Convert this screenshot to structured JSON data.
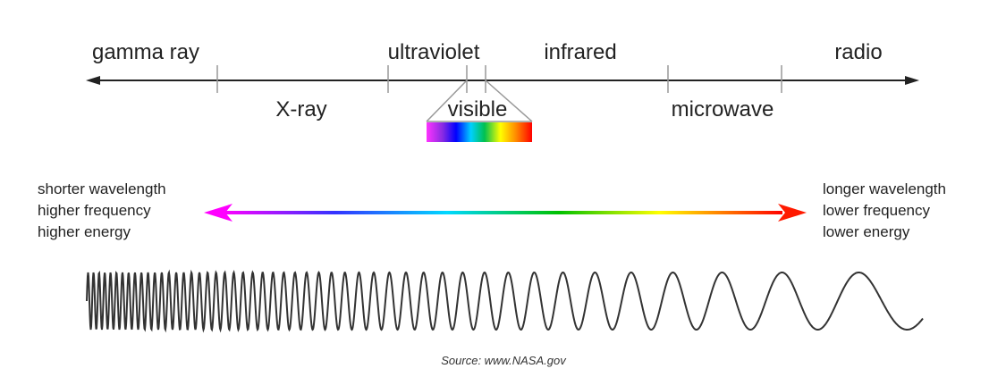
{
  "bands_above": [
    "gamma ray",
    "ultraviolet",
    "infrared",
    "radio"
  ],
  "bands_below": [
    "X-ray",
    "visible",
    "microwave"
  ],
  "left_labels": [
    "shorter wavelength",
    "higher frequency",
    "higher energy"
  ],
  "right_labels": [
    "longer wavelength",
    "lower frequency",
    "lower energy"
  ],
  "source": "Source: www.NASA.gov"
}
